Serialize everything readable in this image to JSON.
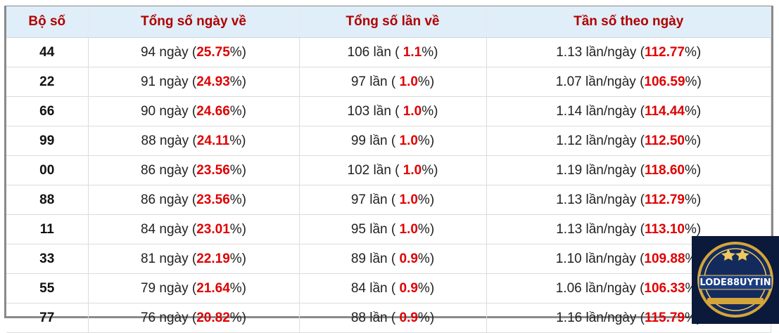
{
  "table": {
    "header": [
      "Bộ số",
      "Tổng số ngày về",
      "Tổng số lần về",
      "Tần số theo ngày"
    ],
    "rows": [
      {
        "bo_so": "44",
        "ngay": [
          "94 ngày (",
          "25.75",
          "%)"
        ],
        "lan": [
          "106 lần ( ",
          "1.1",
          "%)"
        ],
        "tan_so": [
          "1.13 lần/ngày (",
          "112.77",
          "%)"
        ]
      },
      {
        "bo_so": "22",
        "ngay": [
          "91 ngày (",
          "24.93",
          "%)"
        ],
        "lan": [
          "97 lần ( ",
          "1.0",
          "%)"
        ],
        "tan_so": [
          "1.07 lần/ngày (",
          "106.59",
          "%)"
        ]
      },
      {
        "bo_so": "66",
        "ngay": [
          "90 ngày (",
          "24.66",
          "%)"
        ],
        "lan": [
          "103 lần ( ",
          "1.0",
          "%)"
        ],
        "tan_so": [
          "1.14 lần/ngày (",
          "114.44",
          "%)"
        ]
      },
      {
        "bo_so": "99",
        "ngay": [
          "88 ngày (",
          "24.11",
          "%)"
        ],
        "lan": [
          "99 lần ( ",
          "1.0",
          "%)"
        ],
        "tan_so": [
          "1.12 lần/ngày (",
          "112.50",
          "%)"
        ]
      },
      {
        "bo_so": "00",
        "ngay": [
          "86 ngày (",
          "23.56",
          "%)"
        ],
        "lan": [
          "102 lần ( ",
          "1.0",
          "%)"
        ],
        "tan_so": [
          "1.19 lần/ngày (",
          "118.60",
          "%)"
        ]
      },
      {
        "bo_so": "88",
        "ngay": [
          "86 ngày (",
          "23.56",
          "%)"
        ],
        "lan": [
          "97 lần ( ",
          "1.0",
          "%)"
        ],
        "tan_so": [
          "1.13 lần/ngày (",
          "112.79",
          "%)"
        ]
      },
      {
        "bo_so": "11",
        "ngay": [
          "84 ngày (",
          "23.01",
          "%)"
        ],
        "lan": [
          "95 lần ( ",
          "1.0",
          "%)"
        ],
        "tan_so": [
          "1.13 lần/ngày (",
          "113.10",
          "%)"
        ]
      },
      {
        "bo_so": "33",
        "ngay": [
          "81 ngày (",
          "22.19",
          "%)"
        ],
        "lan": [
          "89 lần ( ",
          "0.9",
          "%)"
        ],
        "tan_so": [
          "1.10 lần/ngày (",
          "109.88",
          "%)"
        ]
      },
      {
        "bo_so": "55",
        "ngay": [
          "79 ngày (",
          "21.64",
          "%)"
        ],
        "lan": [
          "84 lần ( ",
          "0.9",
          "%)"
        ],
        "tan_so": [
          "1.06 lần/ngày (",
          "106.33",
          "%)"
        ]
      },
      {
        "bo_so": "77",
        "ngay": [
          "76 ngày (",
          "20.82",
          "%)"
        ],
        "lan": [
          "88 lần ( ",
          "0.9",
          "%)"
        ],
        "tan_so": [
          "1.16 lần/ngày (",
          "115.79",
          "%)"
        ]
      }
    ]
  },
  "logo": {
    "text": "LODE88UYTIN"
  }
}
